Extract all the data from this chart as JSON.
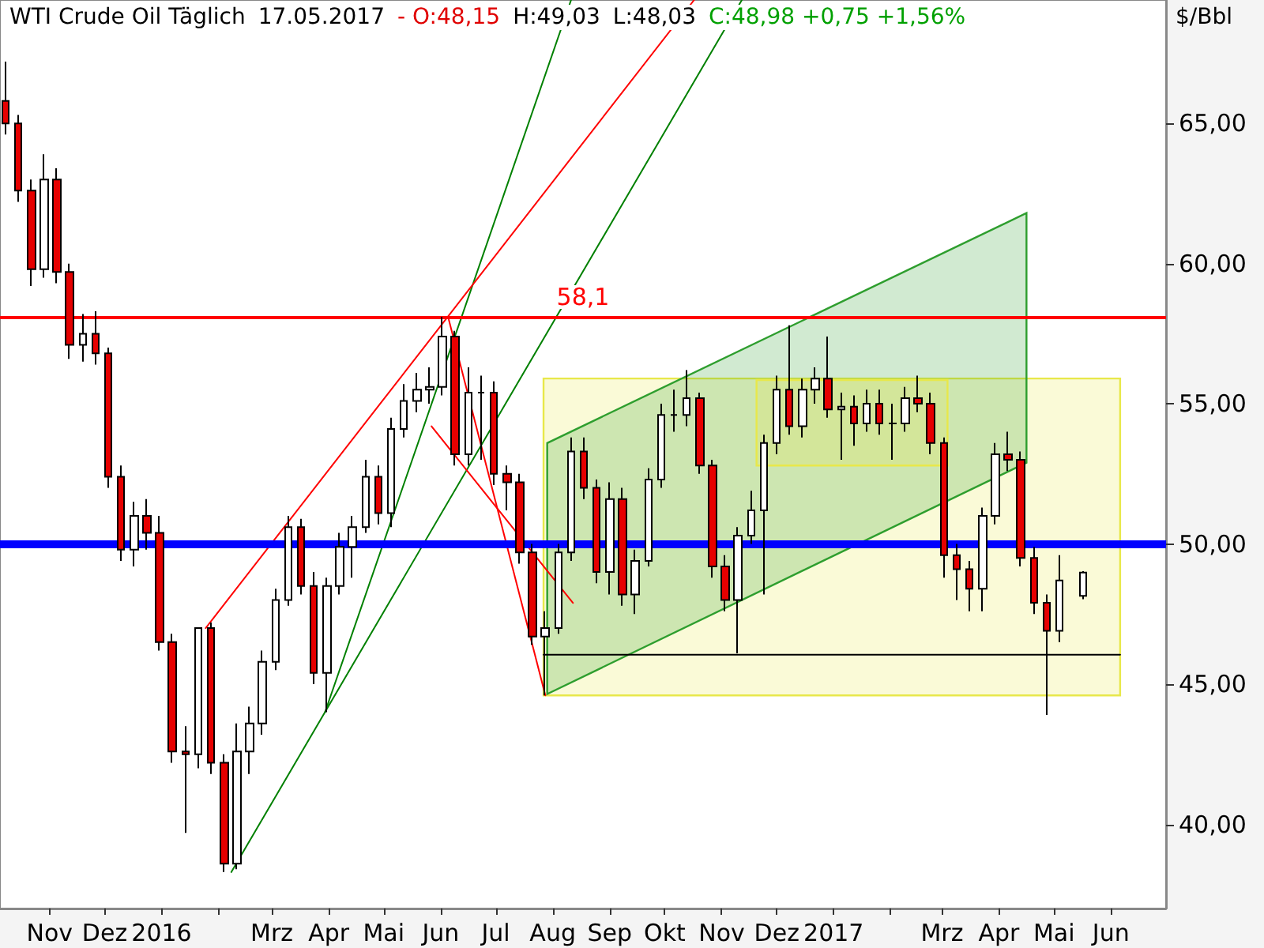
{
  "chart_data": {
    "type": "candlestick",
    "title": "WTI Crude Oil Täglich",
    "subtitle": "17.05.2017",
    "ylabel": "$/Bbl",
    "annotations": [
      "- O:48,15",
      "H:49,03",
      "L:48,03",
      "C:48,98 +0,75 +1,56%"
    ],
    "x": [
      "2015-10-08",
      "2015-10-15",
      "2015-10-22",
      "2015-10-29",
      "2015-11-05",
      "2015-11-12",
      "2015-11-19",
      "2015-11-26",
      "2015-12-03",
      "2015-12-10",
      "2015-12-17",
      "2015-12-24",
      "2015-12-31",
      "2016-01-07",
      "2016-01-14",
      "2016-01-21",
      "2016-01-28",
      "2016-02-04",
      "2016-02-11",
      "2016-02-18",
      "2016-02-25",
      "2016-03-03",
      "2016-03-10",
      "2016-03-17",
      "2016-03-24",
      "2016-03-31",
      "2016-04-07",
      "2016-04-14",
      "2016-04-21",
      "2016-04-28",
      "2016-05-05",
      "2016-05-12",
      "2016-05-19",
      "2016-05-26",
      "2016-06-02",
      "2016-06-09",
      "2016-06-16",
      "2016-06-23",
      "2016-06-30",
      "2016-07-07",
      "2016-07-14",
      "2016-07-21",
      "2016-07-28",
      "2016-08-04",
      "2016-08-11",
      "2016-08-18",
      "2016-08-25",
      "2016-09-01",
      "2016-09-08",
      "2016-09-15",
      "2016-09-22",
      "2016-09-29",
      "2016-10-06",
      "2016-10-13",
      "2016-10-20",
      "2016-10-27",
      "2016-11-03",
      "2016-11-10",
      "2016-11-17",
      "2016-11-24",
      "2016-12-01",
      "2016-12-08",
      "2016-12-15",
      "2016-12-22",
      "2016-12-29",
      "2017-01-05",
      "2017-01-12",
      "2017-01-19",
      "2017-01-26",
      "2017-02-02",
      "2017-02-09",
      "2017-02-16",
      "2017-02-23",
      "2017-03-02",
      "2017-03-09",
      "2017-03-16",
      "2017-03-23",
      "2017-03-30",
      "2017-04-06",
      "2017-04-13",
      "2017-04-20",
      "2017-04-27",
      "2017-05-04",
      "2017-05-17"
    ],
    "ohlc": [
      [
        65.8,
        67.2,
        64.6,
        65.0
      ],
      [
        65.0,
        65.3,
        62.2,
        62.6
      ],
      [
        62.6,
        63.0,
        59.2,
        59.8
      ],
      [
        59.8,
        63.9,
        59.5,
        63.0
      ],
      [
        63.0,
        63.4,
        59.3,
        59.7
      ],
      [
        59.7,
        60.0,
        56.6,
        57.1
      ],
      [
        57.1,
        58.2,
        56.5,
        57.5
      ],
      [
        57.5,
        58.3,
        56.4,
        56.8
      ],
      [
        56.8,
        57.0,
        52.0,
        52.4
      ],
      [
        52.4,
        52.8,
        49.4,
        49.8
      ],
      [
        49.8,
        51.5,
        49.2,
        51.0
      ],
      [
        51.0,
        51.6,
        49.8,
        50.4
      ],
      [
        50.4,
        51.0,
        46.2,
        46.5
      ],
      [
        46.5,
        46.8,
        42.2,
        42.6
      ],
      [
        42.6,
        43.5,
        39.7,
        42.5
      ],
      [
        42.5,
        47.0,
        42.0,
        47.0
      ],
      [
        47.0,
        47.2,
        41.8,
        42.2
      ],
      [
        42.2,
        42.5,
        38.3,
        38.6
      ],
      [
        38.6,
        43.6,
        38.4,
        42.6
      ],
      [
        42.6,
        44.2,
        41.8,
        43.6
      ],
      [
        43.6,
        46.2,
        43.2,
        45.8
      ],
      [
        45.8,
        48.4,
        45.5,
        48.0
      ],
      [
        48.0,
        51.0,
        47.8,
        50.6
      ],
      [
        50.6,
        50.9,
        48.2,
        48.5
      ],
      [
        48.5,
        49.0,
        45.0,
        45.4
      ],
      [
        45.4,
        48.8,
        44.0,
        48.5
      ],
      [
        48.5,
        50.4,
        48.2,
        49.9
      ],
      [
        49.9,
        51.0,
        48.8,
        50.6
      ],
      [
        50.6,
        53.0,
        50.4,
        52.4
      ],
      [
        52.4,
        52.8,
        50.7,
        51.1
      ],
      [
        51.1,
        54.5,
        50.6,
        54.1
      ],
      [
        54.1,
        55.7,
        53.8,
        55.1
      ],
      [
        55.1,
        56.1,
        54.7,
        55.5
      ],
      [
        55.5,
        56.3,
        55.0,
        55.6
      ],
      [
        55.6,
        58.1,
        55.3,
        57.4
      ],
      [
        57.4,
        57.6,
        52.8,
        53.2
      ],
      [
        53.2,
        56.3,
        52.8,
        55.4
      ],
      [
        55.4,
        56.0,
        53.0,
        55.4
      ],
      [
        55.4,
        55.8,
        52.1,
        52.5
      ],
      [
        52.5,
        52.8,
        51.2,
        52.2
      ],
      [
        52.2,
        52.5,
        49.3,
        49.7
      ],
      [
        49.7,
        50.0,
        46.4,
        46.7
      ],
      [
        46.7,
        47.6,
        44.6,
        47.0
      ],
      [
        47.0,
        50.0,
        46.8,
        49.7
      ],
      [
        49.7,
        53.8,
        49.4,
        53.3
      ],
      [
        53.3,
        53.8,
        51.6,
        52.0
      ],
      [
        52.0,
        52.3,
        48.6,
        49.0
      ],
      [
        49.0,
        52.2,
        48.2,
        51.6
      ],
      [
        51.6,
        52.0,
        47.8,
        48.2
      ],
      [
        48.2,
        49.8,
        47.5,
        49.4
      ],
      [
        49.4,
        52.7,
        49.2,
        52.3
      ],
      [
        52.3,
        55.0,
        52.0,
        54.6
      ],
      [
        54.6,
        55.5,
        54.0,
        54.6
      ],
      [
        54.6,
        56.2,
        54.2,
        55.2
      ],
      [
        55.2,
        55.4,
        52.5,
        52.8
      ],
      [
        52.8,
        53.0,
        48.8,
        49.2
      ],
      [
        49.2,
        49.6,
        47.6,
        48.0
      ],
      [
        48.0,
        50.6,
        46.1,
        50.3
      ],
      [
        50.3,
        51.9,
        50.0,
        51.2
      ],
      [
        51.2,
        53.9,
        48.2,
        53.6
      ],
      [
        53.6,
        56.0,
        53.2,
        55.5
      ],
      [
        55.5,
        57.8,
        53.9,
        54.2
      ],
      [
        54.2,
        55.9,
        53.8,
        55.5
      ],
      [
        55.5,
        56.3,
        55.0,
        55.9
      ],
      [
        55.9,
        57.4,
        54.5,
        54.8
      ],
      [
        54.8,
        55.4,
        53.0,
        54.9
      ],
      [
        54.9,
        55.3,
        53.5,
        54.3
      ],
      [
        54.3,
        55.5,
        54.0,
        55.0
      ],
      [
        55.0,
        55.5,
        53.9,
        54.3
      ],
      [
        54.3,
        55.0,
        53.0,
        54.3
      ],
      [
        54.3,
        55.6,
        54.0,
        55.2
      ],
      [
        55.2,
        56.0,
        54.7,
        55.0
      ],
      [
        55.0,
        55.4,
        53.2,
        53.6
      ],
      [
        53.6,
        53.8,
        48.8,
        49.6
      ],
      [
        49.6,
        50.0,
        48.0,
        49.1
      ],
      [
        49.1,
        49.4,
        47.6,
        48.4
      ],
      [
        48.4,
        51.3,
        47.6,
        51.0
      ],
      [
        51.0,
        53.6,
        50.7,
        53.2
      ],
      [
        53.2,
        54.0,
        52.6,
        53.0
      ],
      [
        53.0,
        53.3,
        49.2,
        49.5
      ],
      [
        49.5,
        49.9,
        47.5,
        47.9
      ],
      [
        47.9,
        48.2,
        43.9,
        46.9
      ],
      [
        46.9,
        49.6,
        46.5,
        48.7
      ],
      [
        48.15,
        49.03,
        48.03,
        48.98
      ]
    ],
    "series": [
      {
        "type": "area",
        "x": [
          "2016-07-27",
          "2017-06-06",
          "2017-06-06",
          "2016-07-27"
        ],
        "values": [
          44.6,
          44.6,
          55.9,
          55.9
        ],
        "color": "#e8e84a"
      },
      {
        "type": "area",
        "x": [
          "2016-07-29",
          "2017-04-16",
          "2017-04-16",
          "2016-07-29"
        ],
        "values": [
          44.65,
          52.9,
          61.8,
          53.6
        ],
        "color": "#2e9e2e"
      },
      {
        "type": "area",
        "x": [
          "2016-11-20",
          "2017-03-04",
          "2017-03-04",
          "2016-11-20"
        ],
        "values": [
          52.8,
          52.8,
          55.85,
          55.85
        ],
        "color": "#e8e84a"
      },
      {
        "type": "line",
        "x": [
          "2016-07-27",
          "2017-06-06"
        ],
        "values": [
          46.05,
          46.05
        ],
        "color": "#000000"
      },
      {
        "type": "line",
        "x": [
          "2016-02-08",
          "2016-11-12"
        ],
        "values": [
          38.3,
          69.4
        ],
        "color": "#008000"
      },
      {
        "type": "line",
        "x": [
          "2016-03-30",
          "2016-08-11"
        ],
        "values": [
          44.0,
          69.4
        ],
        "color": "#008000"
      },
      {
        "type": "line",
        "x": [
          "2016-01-25",
          "2016-10-17"
        ],
        "values": [
          47.0,
          69.4
        ],
        "color": "#ff0000"
      },
      {
        "type": "line",
        "x": [
          "2016-06-05",
          "2016-07-28"
        ],
        "values": [
          58.1,
          44.6
        ],
        "color": "#ff0000"
      },
      {
        "type": "line",
        "x": [
          "2016-05-27",
          "2016-08-12"
        ],
        "values": [
          54.2,
          47.9
        ],
        "color": "#ff0000"
      }
    ],
    "ref_lines": [
      {
        "axis": "y",
        "value": 58.1,
        "label": "58,1",
        "color": "#ff0000"
      },
      {
        "axis": "y",
        "value": 50,
        "color": "#0000ff"
      }
    ],
    "marker": "none",
    "xlim": [
      "2015-10-05",
      "2017-07-01"
    ],
    "xticks": [
      {
        "value": "2015-11",
        "label": "Nov"
      },
      {
        "value": "2015-12",
        "label": "Dez"
      },
      {
        "value": "2016-01",
        "label": "2016"
      },
      {
        "value": "2016-02",
        "label": null
      },
      {
        "value": "2016-03",
        "label": "Mrz"
      },
      {
        "value": "2016-04",
        "label": "Apr"
      },
      {
        "value": "2016-05",
        "label": "Mai"
      },
      {
        "value": "2016-06",
        "label": "Jun"
      },
      {
        "value": "2016-07",
        "label": "Jul"
      },
      {
        "value": "2016-08",
        "label": "Aug"
      },
      {
        "value": "2016-09",
        "label": "Sep"
      },
      {
        "value": "2016-10",
        "label": "Okt"
      },
      {
        "value": "2016-11",
        "label": "Nov"
      },
      {
        "value": "2016-12",
        "label": "Dez"
      },
      {
        "value": "2017-01",
        "label": "2017"
      },
      {
        "value": "2017-02",
        "label": null
      },
      {
        "value": "2017-03",
        "label": "Mrz"
      },
      {
        "value": "2017-04",
        "label": "Apr"
      },
      {
        "value": "2017-05",
        "label": "Mai"
      },
      {
        "value": "2017-06",
        "label": "Jun"
      }
    ],
    "ylim": [
      37,
      69.4
    ],
    "yticks": [
      {
        "value": 40,
        "label": "40,00"
      },
      {
        "value": 45,
        "label": "45,00"
      },
      {
        "value": 50,
        "label": "50,00"
      },
      {
        "value": 55,
        "label": "55,00"
      },
      {
        "value": 60,
        "label": "60,00"
      },
      {
        "value": 65,
        "label": "65,00"
      }
    ]
  }
}
